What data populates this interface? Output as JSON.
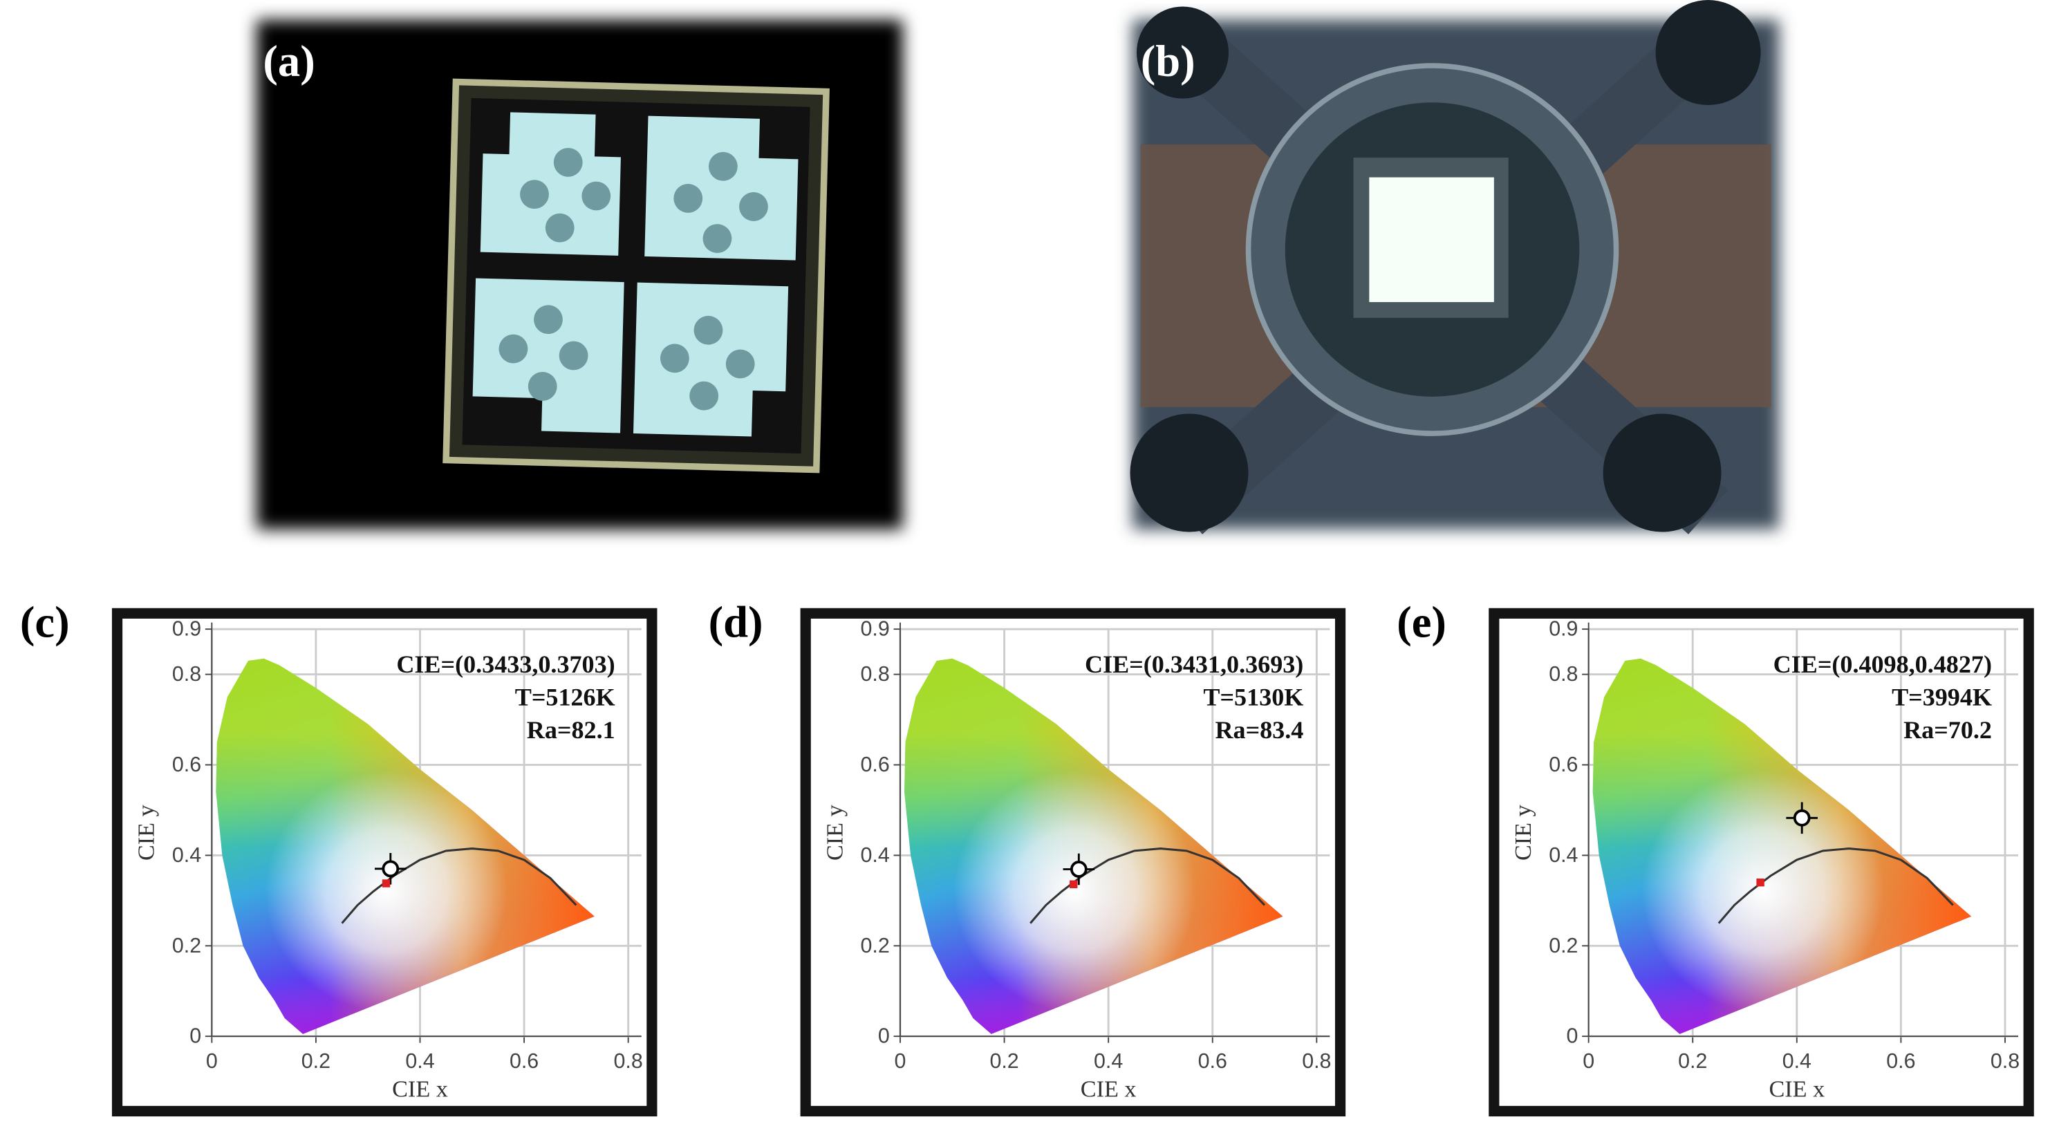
{
  "panels": [
    {
      "label": "(a)"
    },
    {
      "label": "(b)"
    }
  ],
  "chart_data": [
    {
      "type": "scatter",
      "label": "(c)",
      "xlabel": "CIE x",
      "ylabel": "CIE y",
      "xlim": [
        0,
        0.8
      ],
      "ylim": [
        0,
        0.9
      ],
      "xticks": [
        0,
        0.2,
        0.4,
        0.6,
        0.8
      ],
      "yticks": [
        0,
        0.2,
        0.4,
        0.6,
        0.8,
        0.9
      ],
      "grid": true,
      "annotations": [
        "CIE=(0.3433,0.3703)",
        "T=5126K",
        "Ra=82.1"
      ],
      "series": [
        {
          "style": "gamut",
          "x": [
            0.175,
            0.16,
            0.14,
            0.12,
            0.09,
            0.06,
            0.04,
            0.02,
            0.008,
            0.01,
            0.03,
            0.07,
            0.1,
            0.13,
            0.2,
            0.3,
            0.4,
            0.5,
            0.6,
            0.7,
            0.735
          ],
          "values": [
            0.005,
            0.02,
            0.04,
            0.08,
            0.13,
            0.2,
            0.29,
            0.4,
            0.54,
            0.65,
            0.75,
            0.83,
            0.835,
            0.82,
            0.77,
            0.69,
            0.59,
            0.5,
            0.4,
            0.3,
            0.265
          ]
        },
        {
          "style": "line",
          "color": "#333333",
          "x": [
            0.25,
            0.28,
            0.31,
            0.35,
            0.4,
            0.45,
            0.5,
            0.55,
            0.6,
            0.65,
            0.7
          ],
          "values": [
            0.25,
            0.29,
            0.32,
            0.355,
            0.39,
            0.41,
            0.415,
            0.41,
            0.39,
            0.35,
            0.29
          ]
        },
        {
          "style": "marker",
          "color": "#000000",
          "x": [
            0.3433
          ],
          "values": [
            0.3703
          ]
        },
        {
          "style": "dot",
          "color": "#e02020",
          "x": [
            0.335
          ],
          "values": [
            0.338
          ]
        }
      ]
    },
    {
      "type": "scatter",
      "label": "(d)",
      "xlabel": "CIE x",
      "ylabel": "CIE y",
      "xlim": [
        0,
        0.8
      ],
      "ylim": [
        0,
        0.9
      ],
      "xticks": [
        0,
        0.2,
        0.4,
        0.6,
        0.8
      ],
      "yticks": [
        0,
        0.2,
        0.4,
        0.6,
        0.8,
        0.9
      ],
      "grid": true,
      "annotations": [
        "CIE=(0.3431,0.3693)",
        "T=5130K",
        "Ra=83.4"
      ],
      "series": [
        {
          "style": "gamut",
          "x": [
            0.175,
            0.16,
            0.14,
            0.12,
            0.09,
            0.06,
            0.04,
            0.02,
            0.008,
            0.01,
            0.03,
            0.07,
            0.1,
            0.13,
            0.2,
            0.3,
            0.4,
            0.5,
            0.6,
            0.7,
            0.735
          ],
          "values": [
            0.005,
            0.02,
            0.04,
            0.08,
            0.13,
            0.2,
            0.29,
            0.4,
            0.54,
            0.65,
            0.75,
            0.83,
            0.835,
            0.82,
            0.77,
            0.69,
            0.59,
            0.5,
            0.4,
            0.3,
            0.265
          ]
        },
        {
          "style": "line",
          "color": "#333333",
          "x": [
            0.25,
            0.28,
            0.31,
            0.35,
            0.4,
            0.45,
            0.5,
            0.55,
            0.6,
            0.65,
            0.7
          ],
          "values": [
            0.25,
            0.29,
            0.32,
            0.355,
            0.39,
            0.41,
            0.415,
            0.41,
            0.39,
            0.35,
            0.29
          ]
        },
        {
          "style": "marker",
          "color": "#000000",
          "x": [
            0.3431
          ],
          "values": [
            0.3693
          ]
        },
        {
          "style": "dot",
          "color": "#e02020",
          "x": [
            0.333
          ],
          "values": [
            0.336
          ]
        }
      ]
    },
    {
      "type": "scatter",
      "label": "(e)",
      "xlabel": "CIE x",
      "ylabel": "CIE y",
      "xlim": [
        0,
        0.8
      ],
      "ylim": [
        0,
        0.9
      ],
      "xticks": [
        0,
        0.2,
        0.4,
        0.6,
        0.8
      ],
      "yticks": [
        0,
        0.2,
        0.4,
        0.6,
        0.8,
        0.9
      ],
      "grid": true,
      "annotations": [
        "CIE=(0.4098,0.4827)",
        "T=3994K",
        "Ra=70.2"
      ],
      "series": [
        {
          "style": "gamut",
          "x": [
            0.175,
            0.16,
            0.14,
            0.12,
            0.09,
            0.06,
            0.04,
            0.02,
            0.008,
            0.01,
            0.03,
            0.07,
            0.1,
            0.13,
            0.2,
            0.3,
            0.4,
            0.5,
            0.6,
            0.7,
            0.735
          ],
          "values": [
            0.005,
            0.02,
            0.04,
            0.08,
            0.13,
            0.2,
            0.29,
            0.4,
            0.54,
            0.65,
            0.75,
            0.83,
            0.835,
            0.82,
            0.77,
            0.69,
            0.59,
            0.5,
            0.4,
            0.3,
            0.265
          ]
        },
        {
          "style": "line",
          "color": "#333333",
          "x": [
            0.25,
            0.28,
            0.31,
            0.35,
            0.4,
            0.45,
            0.5,
            0.55,
            0.6,
            0.65,
            0.7
          ],
          "values": [
            0.25,
            0.29,
            0.32,
            0.355,
            0.39,
            0.41,
            0.415,
            0.41,
            0.39,
            0.35,
            0.29
          ]
        },
        {
          "style": "marker",
          "color": "#000000",
          "x": [
            0.4098
          ],
          "values": [
            0.4827
          ]
        },
        {
          "style": "dot",
          "color": "#e02020",
          "x": [
            0.33
          ],
          "values": [
            0.34
          ]
        }
      ]
    }
  ]
}
